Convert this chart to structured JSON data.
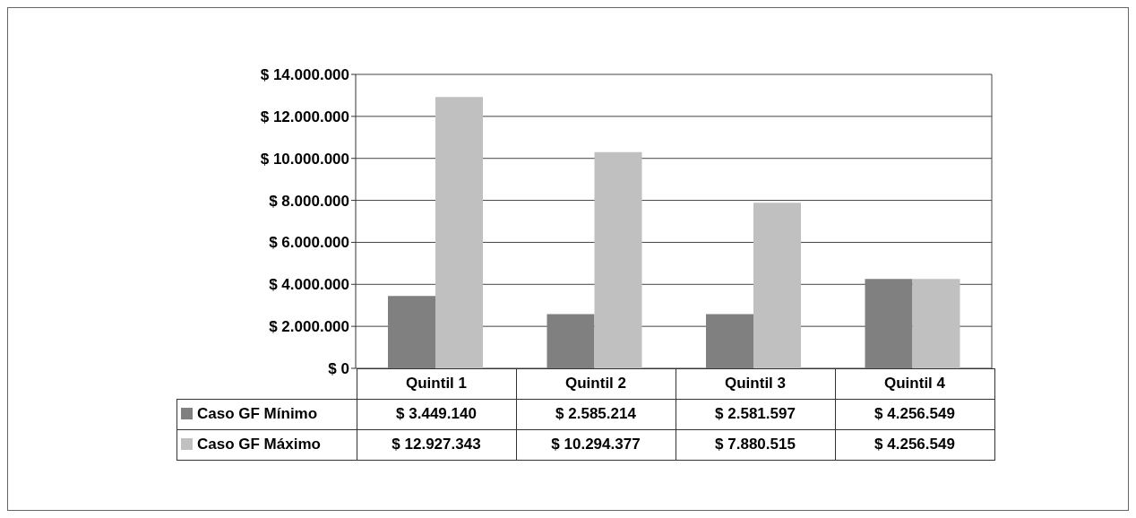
{
  "chart_data": {
    "type": "bar",
    "categories": [
      "Quintil 1",
      "Quintil 2",
      "Quintil 3",
      "Quintil 4"
    ],
    "series": [
      {
        "name": "Caso GF Mínimo",
        "color": "#808080",
        "values": [
          3449140,
          2585214,
          2581597,
          4256549
        ],
        "value_labels": [
          "$ 3.449.140",
          "$ 2.585.214",
          "$ 2.581.597",
          "$ 4.256.549"
        ]
      },
      {
        "name": "Caso GF Máximo",
        "color": "#c0c0c0",
        "values": [
          12927343,
          10294377,
          7880515,
          4256549
        ],
        "value_labels": [
          "$ 12.927.343",
          "$ 10.294.377",
          "$ 7.880.515",
          "$ 4.256.549"
        ]
      }
    ],
    "ylim": [
      0,
      14000000
    ],
    "yticks": [
      {
        "value": 0,
        "label": "$ 0"
      },
      {
        "value": 2000000,
        "label": "$ 2.000.000"
      },
      {
        "value": 4000000,
        "label": "$ 4.000.000"
      },
      {
        "value": 6000000,
        "label": "$ 6.000.000"
      },
      {
        "value": 8000000,
        "label": "$ 8.000.000"
      },
      {
        "value": 10000000,
        "label": "$ 10.000.000"
      },
      {
        "value": 12000000,
        "label": "$ 12.000.000"
      },
      {
        "value": 14000000,
        "label": "$ 14.000.000"
      }
    ],
    "grid": "y",
    "legend": "bottom"
  }
}
